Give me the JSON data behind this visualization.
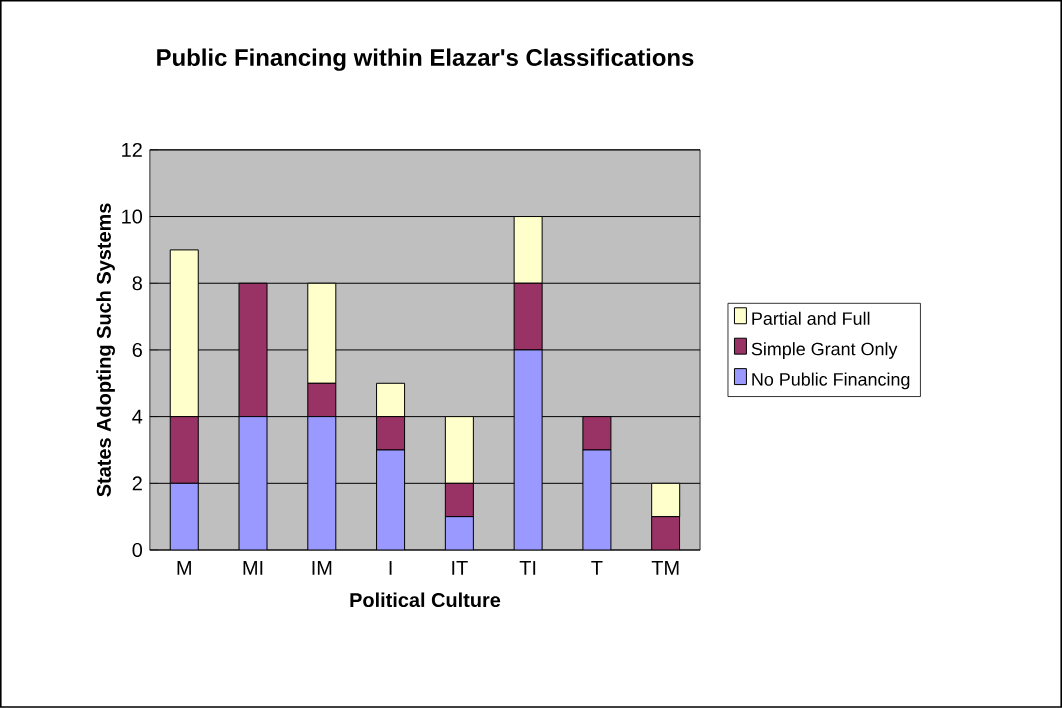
{
  "chart_data": {
    "type": "bar",
    "title": "Public Financing within Elazar's Classifications",
    "xlabel": "Political Culture",
    "ylabel": "States Adopting Such Systems",
    "categories": [
      "M",
      "MI",
      "IM",
      "I",
      "IT",
      "TI",
      "T",
      "TM"
    ],
    "series": [
      {
        "name": "No Public Financing",
        "color": "#9999ff",
        "values": [
          2,
          4,
          4,
          3,
          1,
          6,
          3,
          0
        ]
      },
      {
        "name": "Simple Grant Only",
        "color": "#993366",
        "values": [
          2,
          4,
          1,
          1,
          1,
          2,
          1,
          1
        ]
      },
      {
        "name": "Partial and Full",
        "color": "#ffffcc",
        "values": [
          5,
          0,
          3,
          1,
          2,
          2,
          0,
          1
        ]
      }
    ],
    "stacked": true,
    "ylim": [
      0,
      12
    ],
    "yticks": [
      0,
      2,
      4,
      6,
      8,
      10,
      12
    ],
    "grid": "y",
    "legend": "right"
  }
}
